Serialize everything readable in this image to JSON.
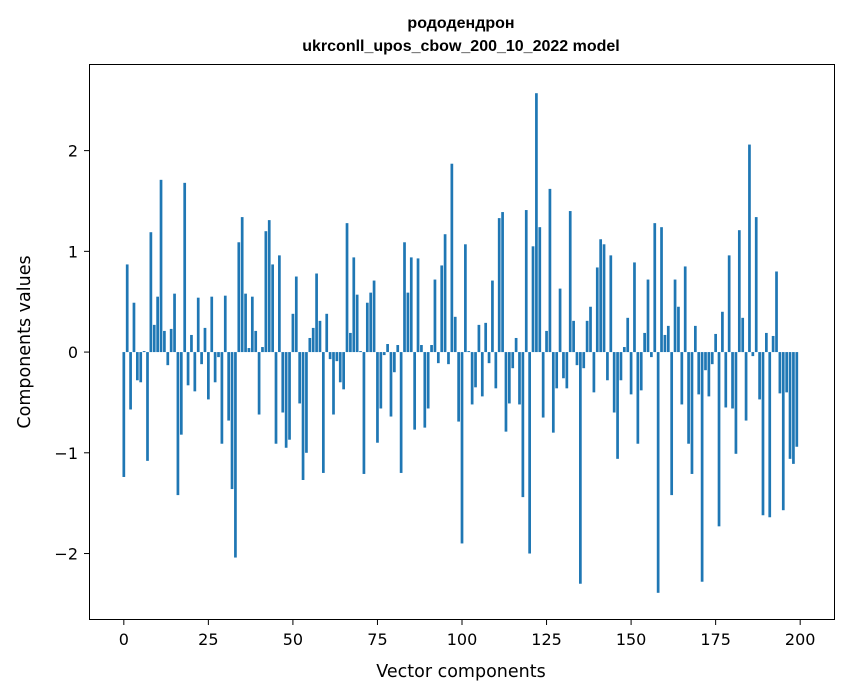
{
  "chart_data": {
    "type": "bar",
    "title": "рододендрон",
    "subtitle": "ukrconll_upos_cbow_200_10_2022 model",
    "xlabel": "Vector components",
    "ylabel": "Components values",
    "xlim": [
      -10,
      210
    ],
    "ylim": [
      -2.65,
      2.85
    ],
    "xticks": [
      0,
      25,
      50,
      75,
      100,
      125,
      150,
      175,
      200
    ],
    "xtick_labels": [
      "0",
      "25",
      "50",
      "75",
      "100",
      "125",
      "150",
      "175",
      "200"
    ],
    "yticks": [
      -2,
      -1,
      0,
      1,
      2
    ],
    "ytick_labels": [
      "−2",
      "−1",
      "0",
      "1",
      "2"
    ],
    "bar_color": "#1f77b4",
    "x": [
      0,
      1,
      2,
      3,
      4,
      5,
      6,
      7,
      8,
      9,
      10,
      11,
      12,
      13,
      14,
      15,
      16,
      17,
      18,
      19,
      20,
      21,
      22,
      23,
      24,
      25,
      26,
      27,
      28,
      29,
      30,
      31,
      32,
      33,
      34,
      35,
      36,
      37,
      38,
      39,
      40,
      41,
      42,
      43,
      44,
      45,
      46,
      47,
      48,
      49,
      50,
      51,
      52,
      53,
      54,
      55,
      56,
      57,
      58,
      59,
      60,
      61,
      62,
      63,
      64,
      65,
      66,
      67,
      68,
      69,
      70,
      71,
      72,
      73,
      74,
      75,
      76,
      77,
      78,
      79,
      80,
      81,
      82,
      83,
      84,
      85,
      86,
      87,
      88,
      89,
      90,
      91,
      92,
      93,
      94,
      95,
      96,
      97,
      98,
      99,
      100,
      101,
      102,
      103,
      104,
      105,
      106,
      107,
      108,
      109,
      110,
      111,
      112,
      113,
      114,
      115,
      116,
      117,
      118,
      119,
      120,
      121,
      122,
      123,
      124,
      125,
      126,
      127,
      128,
      129,
      130,
      131,
      132,
      133,
      134,
      135,
      136,
      137,
      138,
      139,
      140,
      141,
      142,
      143,
      144,
      145,
      146,
      147,
      148,
      149,
      150,
      151,
      152,
      153,
      154,
      155,
      156,
      157,
      158,
      159,
      160,
      161,
      162,
      163,
      164,
      165,
      166,
      167,
      168,
      169,
      170,
      171,
      172,
      173,
      174,
      175,
      176,
      177,
      178,
      179,
      180,
      181,
      182,
      183,
      184,
      185,
      186,
      187,
      188,
      189,
      190,
      191,
      192,
      193,
      194,
      195,
      196,
      197,
      198,
      199
    ],
    "values": [
      -1.24,
      0.87,
      -0.57,
      0.49,
      -0.28,
      -0.3,
      0.01,
      -1.08,
      1.19,
      0.27,
      0.55,
      1.71,
      0.21,
      -0.13,
      0.23,
      0.58,
      -1.42,
      -0.82,
      1.68,
      -0.33,
      0.17,
      -0.39,
      0.54,
      -0.12,
      0.24,
      -0.47,
      0.55,
      -0.3,
      -0.05,
      -0.91,
      0.56,
      -0.68,
      -1.36,
      -2.04,
      1.09,
      1.34,
      0.58,
      0.04,
      0.55,
      0.21,
      -0.62,
      0.05,
      1.2,
      1.31,
      0.87,
      -0.91,
      0.96,
      -0.6,
      -0.95,
      -0.87,
      0.38,
      0.75,
      -0.51,
      -1.27,
      -1.0,
      0.14,
      0.24,
      0.78,
      0.31,
      -1.2,
      0.38,
      -0.07,
      -0.62,
      -0.09,
      -0.3,
      -0.37,
      1.28,
      0.19,
      0.94,
      0.57,
      0.01,
      -1.21,
      0.49,
      0.59,
      0.71,
      -0.9,
      -0.56,
      -0.03,
      0.08,
      -0.64,
      -0.2,
      0.07,
      -1.2,
      1.09,
      0.59,
      0.94,
      -0.77,
      0.93,
      0.07,
      -0.75,
      -0.56,
      0.07,
      0.72,
      -0.11,
      0.86,
      1.17,
      -0.12,
      1.87,
      0.35,
      -0.69,
      -1.9,
      1.07,
      0.01,
      -0.52,
      -0.35,
      0.27,
      -0.44,
      0.29,
      -0.11,
      0.71,
      -0.36,
      1.33,
      1.39,
      -0.79,
      -0.51,
      -0.16,
      0.14,
      -0.52,
      -1.44,
      1.41,
      -2.0,
      1.05,
      2.57,
      1.24,
      -0.65,
      0.21,
      1.62,
      -0.8,
      -0.36,
      0.63,
      -0.26,
      -0.36,
      1.4,
      0.31,
      -0.13,
      -2.3,
      -0.16,
      0.31,
      0.45,
      -0.4,
      0.84,
      1.12,
      1.07,
      -0.28,
      0.96,
      -0.6,
      -1.06,
      -0.28,
      0.05,
      0.34,
      -0.42,
      0.89,
      -0.91,
      -0.38,
      0.19,
      0.72,
      -0.05,
      1.28,
      -2.39,
      1.24,
      0.17,
      0.26,
      -1.42,
      0.72,
      0.45,
      -0.52,
      0.85,
      -0.91,
      -1.21,
      0.26,
      -0.42,
      -2.28,
      -0.18,
      -0.44,
      -0.12,
      0.18,
      -1.73,
      0.4,
      -0.55,
      0.96,
      -0.56,
      -1.01,
      1.21,
      0.34,
      -0.68,
      2.06,
      -0.04,
      1.34,
      -0.47,
      -1.62,
      0.19,
      -1.64,
      0.16,
      0.8,
      -0.41,
      -1.57,
      -0.4,
      -1.06,
      -1.11,
      -0.94
    ]
  }
}
